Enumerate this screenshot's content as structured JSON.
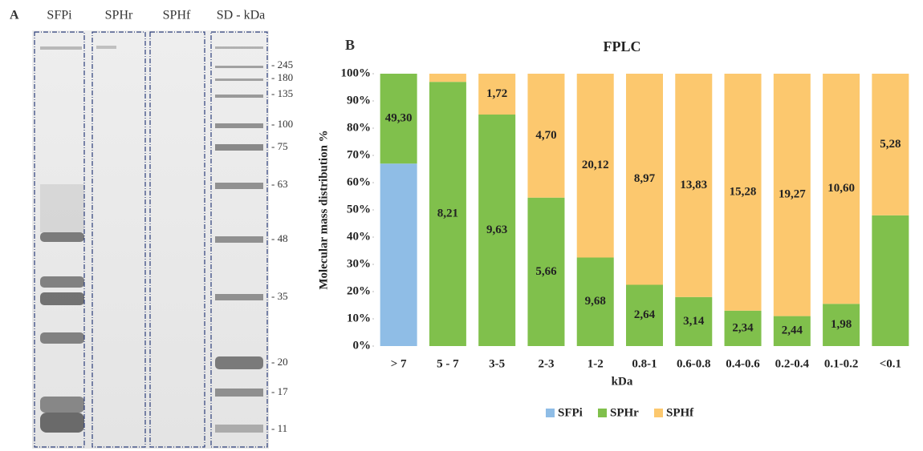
{
  "panel_a": {
    "panel_label": "A",
    "lanes": [
      "SFPi",
      "SPHr",
      "SPHf",
      "SD - kDa"
    ],
    "markers": [
      "- 245",
      "- 180",
      "- 135",
      "- 100",
      "- 75",
      "- 63",
      "- 48",
      "- 35",
      "- 20",
      "- 17",
      "- 11"
    ]
  },
  "chart_data": {
    "type": "stacked_bar",
    "panel_label": "B",
    "title": "FPLC",
    "x_label": "kDa",
    "y_label": "Molecular mass distribution %",
    "categories": [
      "> 7",
      "5 - 7",
      "3-5",
      "2-3",
      "1-2",
      "0.8-1",
      "0.6-0.8",
      "0.4-0.6",
      "0.2-0.4",
      "0.1-0.2",
      "<0.1"
    ],
    "series": [
      {
        "name": "SFPi",
        "color": "#8fbde6",
        "values": [
          67,
          0,
          0,
          0,
          0,
          0,
          0,
          0,
          0,
          0,
          0
        ],
        "point_labels": [
          null,
          null,
          null,
          null,
          null,
          null,
          null,
          null,
          null,
          null,
          null
        ]
      },
      {
        "name": "SPHr",
        "color": "#80c04c",
        "values": [
          33,
          97,
          85,
          54.5,
          32.5,
          22.5,
          18,
          13,
          11,
          15.5,
          48
        ],
        "point_labels": [
          "49,30",
          "8,21",
          "9,63",
          "5,66",
          "9,68",
          "2,64",
          "3,14",
          "2,34",
          "2,44",
          "1,98",
          null
        ]
      },
      {
        "name": "SPHf",
        "color": "#fcc86e",
        "values": [
          0,
          3,
          15,
          45.5,
          67.5,
          77.5,
          82,
          87,
          89,
          84.5,
          52
        ],
        "point_labels": [
          null,
          null,
          "1,72",
          "4,70",
          "20,12",
          "8,97",
          "13,83",
          "15,28",
          "19,27",
          "10,60",
          "5,28"
        ]
      }
    ],
    "ylim": [
      0,
      100
    ],
    "yticks": [
      {
        "value": 0,
        "label": "0%"
      },
      {
        "value": 10,
        "label": "10%"
      },
      {
        "value": 20,
        "label": "20%"
      },
      {
        "value": 30,
        "label": "30%"
      },
      {
        "value": 40,
        "label": "40%"
      },
      {
        "value": 50,
        "label": "50%"
      },
      {
        "value": 60,
        "label": "60%"
      },
      {
        "value": 70,
        "label": "70%"
      },
      {
        "value": 80,
        "label": "80%"
      },
      {
        "value": 90,
        "label": "90%"
      },
      {
        "value": 100,
        "label": "100%"
      }
    ],
    "legend": "bottom"
  }
}
